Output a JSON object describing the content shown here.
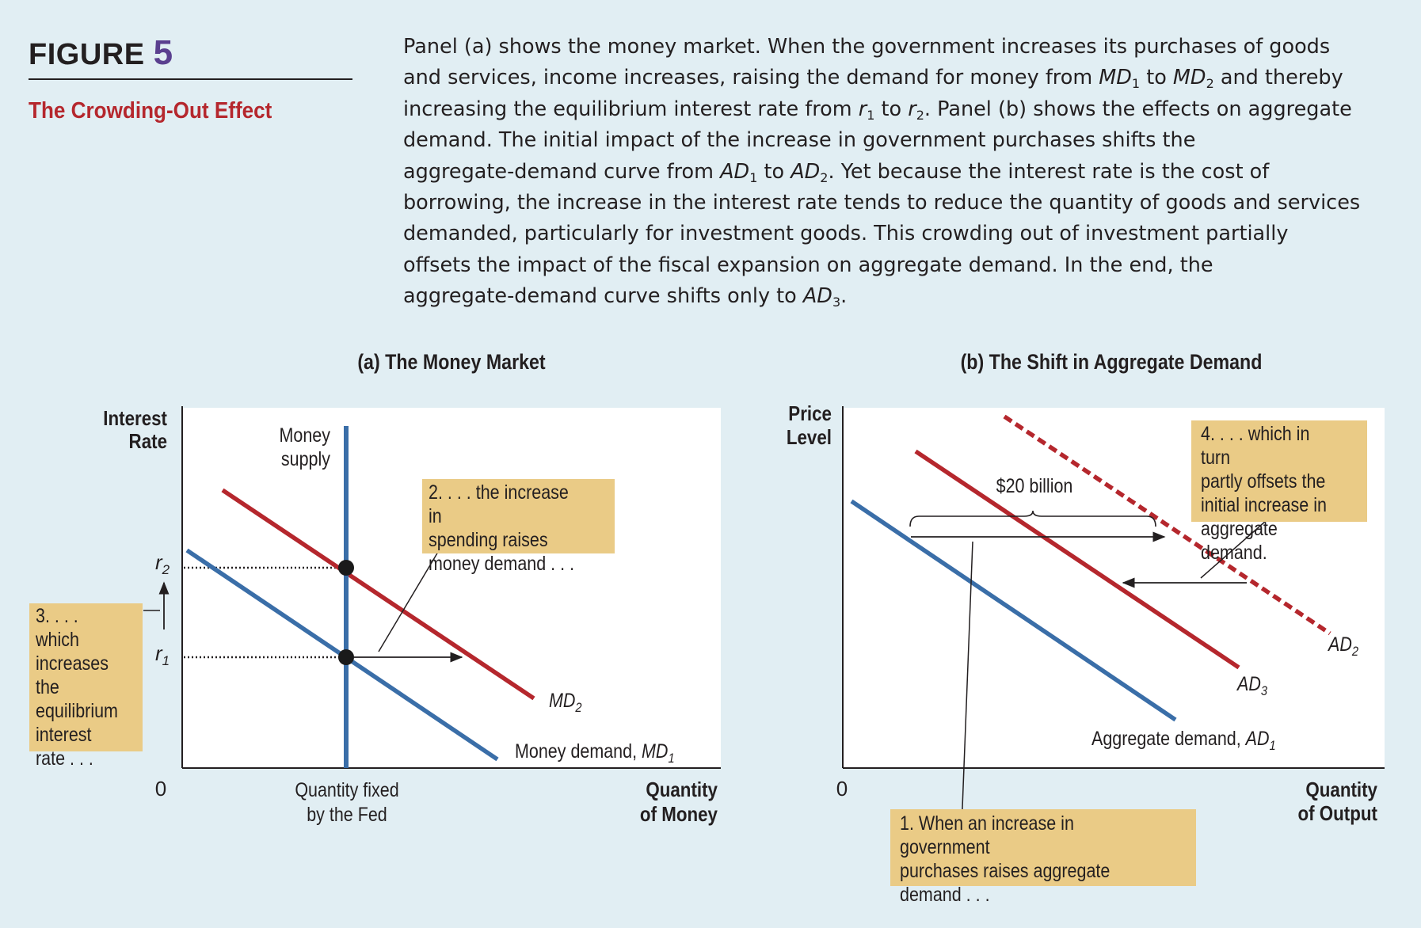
{
  "figure": {
    "label": "FIGURE",
    "number": "5",
    "subtitle": "The Crowding-Out Effect"
  },
  "caption": {
    "line1": "Panel (a) shows the money market. When the government increases its purchases of goods",
    "line2_a": "and services, income increases, raising the demand for money from ",
    "line2_md1": "MD",
    "line2_md1_sub": "1",
    "line2_b": " to ",
    "line2_md2": "MD",
    "line2_md2_sub": "2",
    "line2_c": " and thereby",
    "line3_a": "increasing the equilibrium interest rate from ",
    "line3_r1": "r",
    "line3_r1_sub": "1",
    "line3_b": " to ",
    "line3_r2": "r",
    "line3_r2_sub": "2",
    "line3_c": ". Panel (b) shows the effects on aggregate",
    "line4": "demand. The initial impact of the increase in government purchases shifts the",
    "line5_a": "aggregate-demand curve from ",
    "line5_ad1": "AD",
    "line5_ad1_sub": "1",
    "line5_b": " to ",
    "line5_ad2": "AD",
    "line5_ad2_sub": "2",
    "line5_c": ". Yet because the interest rate is the cost of",
    "line6": "borrowing, the increase in the interest rate tends to reduce the quantity of goods and services",
    "line7": "demanded, particularly for investment goods. This crowding out of investment partially",
    "line8": "offsets the impact of the fiscal expansion on aggregate demand. In the end, the",
    "line9_a": "aggregate-demand curve shifts only to ",
    "line9_ad3": "AD",
    "line9_ad3_sub": "3",
    "line9_b": "."
  },
  "panel_a": {
    "title": "(a) The Money Market",
    "y_axis_label_1": "Interest",
    "y_axis_label_2": "Rate",
    "x_axis_label_1": "Quantity",
    "x_axis_label_2": "of Money",
    "origin": "0",
    "r2_label": "r",
    "r2_sub": "2",
    "r1_label": "r",
    "r1_sub": "1",
    "money_supply_1": "Money",
    "money_supply_2": "supply",
    "qty_fixed_1": "Quantity fixed",
    "qty_fixed_2": "by the Fed",
    "md2_label": "MD",
    "md2_sub": "2",
    "md1_label_prefix": "Money demand, ",
    "md1_label": "MD",
    "md1_sub": "1",
    "note_2": "2. . . . the increase in\nspending raises\nmoney demand . . .",
    "note_3": "3. . . . which\nincreases\nthe\nequilibrium\ninterest\nrate . . ."
  },
  "panel_b": {
    "title": "(b) The Shift in Aggregate Demand",
    "y_axis_label_1": "Price",
    "y_axis_label_2": "Level",
    "x_axis_label_1": "Quantity",
    "x_axis_label_2": "of Output",
    "origin": "0",
    "brace_label": "$20 billion",
    "ad2_label": "AD",
    "ad2_sub": "2",
    "ad3_label": "AD",
    "ad3_sub": "3",
    "ad1_label_prefix": "Aggregate demand, ",
    "ad1_label": "AD",
    "ad1_sub": "1",
    "note_1": "1. When an increase in government\npurchases raises aggregate\ndemand . . .",
    "note_4": "4. . . . which in turn\npartly offsets the\ninitial increase in\naggregate demand."
  },
  "colors": {
    "background": "#e1eef3",
    "plot_area": "#ffffff",
    "blue_curve": "#3a6ea8",
    "red_curve": "#b5272d",
    "note_fill": "#eacb86",
    "subtitle": "#b5272d",
    "figure_number": "#5a3f8f"
  }
}
